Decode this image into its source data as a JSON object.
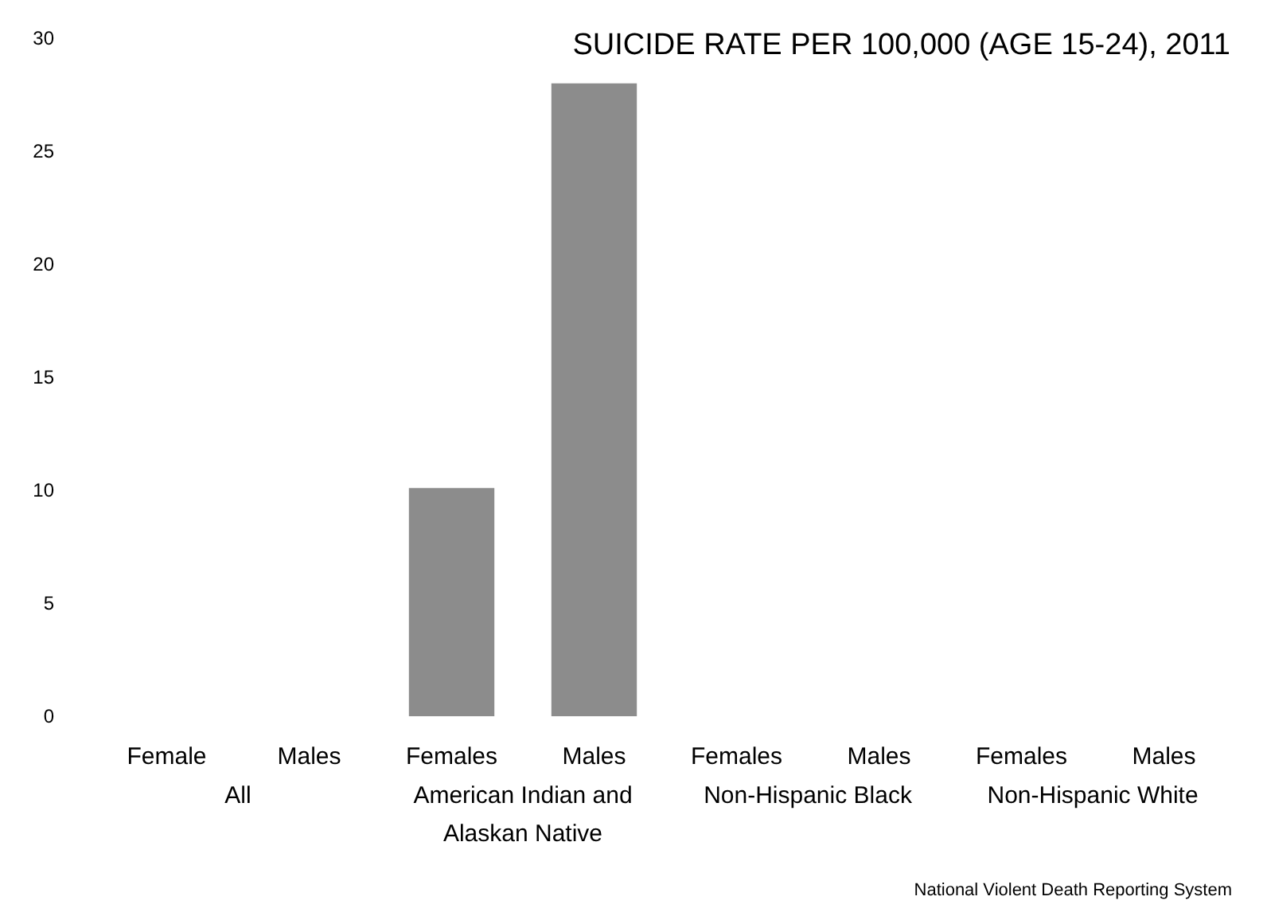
{
  "chart_data": {
    "type": "bar",
    "title": "SUICIDE RATE PER 100,000 (AGE 15-24), 2011",
    "categories": [
      "Female",
      "Males",
      "Females",
      "Males",
      "Females",
      "Males",
      "Females",
      "Males"
    ],
    "values": [
      null,
      null,
      10.1,
      28.0,
      null,
      null,
      null,
      null
    ],
    "color": "#8c8c8c",
    "ylim": [
      0,
      30
    ],
    "yticks": [
      0,
      5,
      10,
      15,
      20,
      25,
      30
    ],
    "grid": false,
    "annotations": [
      "All",
      "American Indian and\nAlaskan Native",
      "Non-Hispanic Black",
      "Non-Hispanic White",
      "National Violent Death Reporting System"
    ]
  }
}
